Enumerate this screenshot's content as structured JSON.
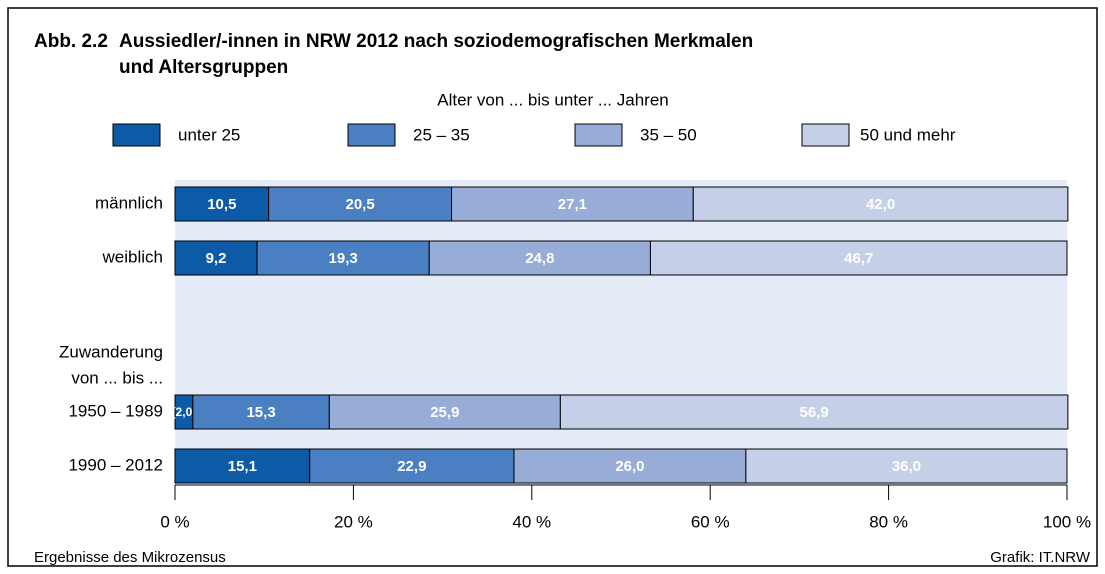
{
  "chart_data": {
    "type": "stacked-bar-horizontal",
    "title_label": "Abb. 2.2",
    "title": [
      "Aussiedler/-innen in NRW 2012 nach soziodemografischen Merkmalen",
      "und Altersgruppen"
    ],
    "legend_title": "Alter von ... bis unter ... Jahren",
    "categories": [
      "männlich",
      "weiblich",
      [
        "Zuwanderung",
        "von ... bis ..."
      ],
      "1950 – 1989",
      "1990 – 2012"
    ],
    "series": [
      {
        "name": "unter 25",
        "color": "#0d5aa7",
        "values": [
          10.5,
          9.2,
          null,
          2.0,
          15.1
        ],
        "value_labels": [
          "10,5",
          "9,2",
          null,
          "(2,0)",
          "15,1"
        ]
      },
      {
        "name": "25 – 35",
        "color": "#4a7fc1",
        "values": [
          20.5,
          19.3,
          null,
          15.3,
          22.9
        ],
        "value_labels": [
          "20,5",
          "19,3",
          null,
          "15,3",
          "22,9"
        ]
      },
      {
        "name": "35 – 50",
        "color": "#98acd8",
        "values": [
          27.1,
          24.8,
          null,
          25.9,
          26.0
        ],
        "value_labels": [
          "27,1",
          "24,8",
          null,
          "25,9",
          "26,0"
        ]
      },
      {
        "name": "50 und mehr",
        "color": "#c5d0e8",
        "values": [
          42.0,
          46.7,
          null,
          56.9,
          36.0
        ],
        "value_labels": [
          "42,0",
          "46,7",
          null,
          "56,9",
          "36,0"
        ]
      }
    ],
    "xlim": [
      0,
      100
    ],
    "xticks": [
      {
        "value": 0,
        "label": "0 %"
      },
      {
        "value": 20,
        "label": "20 %"
      },
      {
        "value": 40,
        "label": "40 %"
      },
      {
        "value": 60,
        "label": "60 %"
      },
      {
        "value": 80,
        "label": "80 %"
      },
      {
        "value": 100,
        "label": "100 %"
      }
    ],
    "source": "Ergebnisse des Mikrozensus",
    "credit": "Grafik: IT.NRW"
  }
}
